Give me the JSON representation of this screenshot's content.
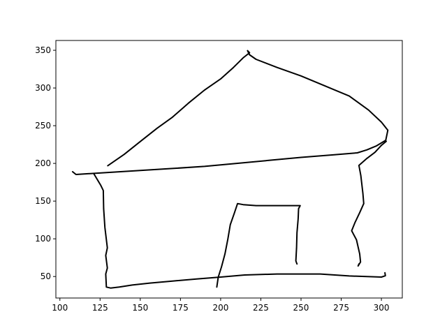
{
  "chart_data": {
    "type": "line",
    "title": "",
    "xlabel": "",
    "ylabel": "",
    "xlim": [
      97.5,
      313.0
    ],
    "ylim": [
      21.5,
      363.0
    ],
    "grid": false,
    "legend": "none",
    "line_color": "#000000",
    "xticks": [
      {
        "value": 100,
        "label": "100"
      },
      {
        "value": 125,
        "label": "125"
      },
      {
        "value": 150,
        "label": "150"
      },
      {
        "value": 175,
        "label": "175"
      },
      {
        "value": 200,
        "label": "200"
      },
      {
        "value": 225,
        "label": "225"
      },
      {
        "value": 250,
        "label": "250"
      },
      {
        "value": 275,
        "label": "275"
      },
      {
        "value": 300,
        "label": "300"
      }
    ],
    "yticks": [
      {
        "value": 50,
        "label": "50"
      },
      {
        "value": 100,
        "label": "100"
      },
      {
        "value": 150,
        "label": "150"
      },
      {
        "value": 200,
        "label": "200"
      },
      {
        "value": 250,
        "label": "250"
      },
      {
        "value": 300,
        "label": "300"
      },
      {
        "value": 350,
        "label": "350"
      }
    ],
    "series": [
      {
        "points": [
          [
            129.8,
            197.0
          ],
          [
            140.0,
            212.0
          ],
          [
            150.0,
            229.0
          ],
          [
            160.5,
            246.7
          ],
          [
            170.0,
            261.3
          ],
          [
            180.0,
            280.0
          ],
          [
            190.0,
            297.3
          ],
          [
            200.0,
            312.0
          ],
          [
            208.0,
            327.3
          ],
          [
            214.0,
            340.0
          ],
          [
            218.0,
            346.7
          ],
          [
            216.7,
            349.5
          ],
          [
            218.0,
            344.0
          ],
          [
            222.0,
            338.0
          ],
          [
            235.0,
            327.3
          ],
          [
            250.0,
            316.0
          ],
          [
            265.0,
            302.7
          ],
          [
            280.0,
            289.3
          ],
          [
            292.0,
            270.7
          ],
          [
            300.0,
            254.7
          ],
          [
            304.0,
            244.0
          ],
          [
            302.7,
            230.7
          ],
          [
            297.0,
            223.3
          ],
          [
            291.0,
            218.0
          ],
          [
            285.0,
            214.0
          ],
          [
            270.0,
            211.3
          ],
          [
            250.0,
            208.0
          ],
          [
            230.0,
            204.0
          ],
          [
            210.0,
            200.0
          ],
          [
            200.0,
            198.0
          ],
          [
            190.0,
            196.0
          ],
          [
            170.0,
            193.3
          ],
          [
            150.0,
            190.7
          ],
          [
            130.0,
            188.0
          ],
          [
            110.0,
            185.3
          ],
          [
            107.9,
            189.0
          ]
        ]
      },
      {
        "points": [
          [
            121.0,
            186.7
          ],
          [
            125.5,
            170.7
          ],
          [
            127.0,
            164.0
          ],
          [
            127.2,
            140.0
          ],
          [
            128.0,
            115.0
          ],
          [
            129.5,
            88.0
          ],
          [
            128.5,
            78.0
          ],
          [
            129.5,
            61.3
          ],
          [
            128.5,
            53.3
          ],
          [
            128.9,
            36.0
          ],
          [
            131.5,
            34.7
          ],
          [
            137.0,
            36.0
          ],
          [
            145.0,
            38.7
          ],
          [
            156.0,
            41.3
          ],
          [
            170.0,
            44.0
          ],
          [
            185.0,
            46.7
          ],
          [
            200.0,
            49.3
          ],
          [
            215.0,
            52.0
          ],
          [
            235.0,
            53.3
          ],
          [
            262.0,
            53.3
          ],
          [
            280.0,
            50.7
          ],
          [
            300.0,
            49.3
          ],
          [
            302.5,
            51.0
          ],
          [
            302.2,
            55.0
          ]
        ]
      },
      {
        "points": [
          [
            197.6,
            36.0
          ],
          [
            198.5,
            49.3
          ],
          [
            200.5,
            62.7
          ],
          [
            202.7,
            80.0
          ],
          [
            204.5,
            100.0
          ],
          [
            206.0,
            118.7
          ],
          [
            208.5,
            134.0
          ],
          [
            210.5,
            146.7
          ],
          [
            214.0,
            145.3
          ],
          [
            222.0,
            144.0
          ],
          [
            235.0,
            144.0
          ],
          [
            249.5,
            144.0
          ],
          [
            248.5,
            140.0
          ],
          [
            248.2,
            126.7
          ],
          [
            247.5,
            108.0
          ],
          [
            247.2,
            88.0
          ],
          [
            246.8,
            70.7
          ],
          [
            247.5,
            66.7
          ]
        ]
      },
      {
        "points": [
          [
            303.0,
            229.3
          ],
          [
            300.0,
            224.0
          ],
          [
            296.0,
            214.7
          ],
          [
            291.0,
            206.7
          ],
          [
            286.0,
            197.3
          ],
          [
            287.2,
            184.0
          ],
          [
            288.5,
            160.0
          ],
          [
            289.0,
            146.7
          ],
          [
            286.5,
            134.7
          ],
          [
            283.5,
            121.3
          ],
          [
            281.5,
            110.7
          ],
          [
            284.5,
            98.7
          ],
          [
            286.5,
            80.0
          ],
          [
            287.0,
            69.3
          ],
          [
            285.5,
            64.0
          ],
          [
            286.0,
            66.7
          ]
        ]
      }
    ]
  }
}
